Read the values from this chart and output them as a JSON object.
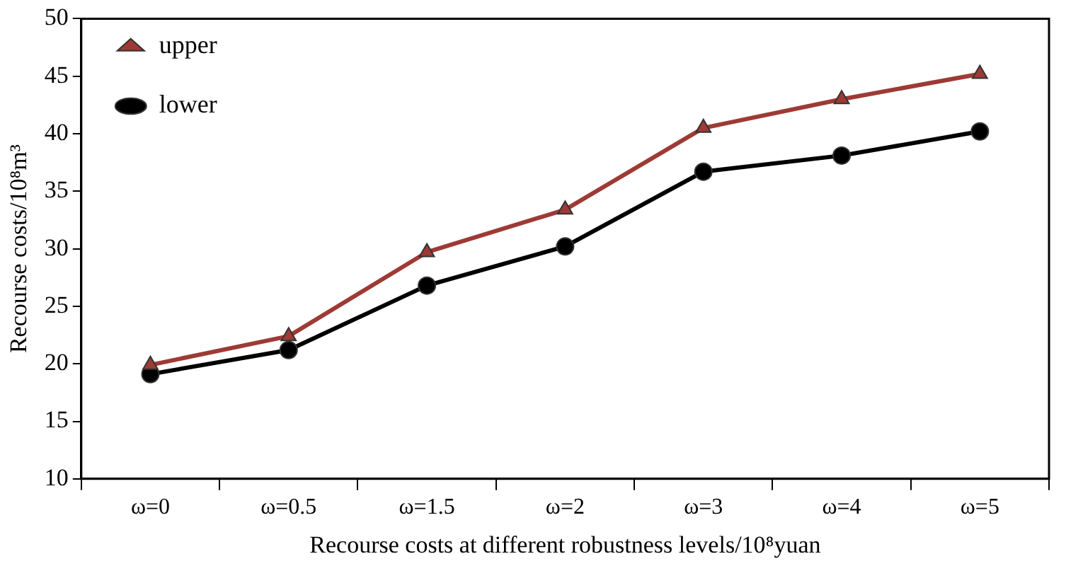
{
  "chart_data": {
    "type": "line",
    "xlabel": "Recourse costs at different robustness levels/10⁸yuan",
    "ylabel": "Recourse costs/10⁸m³",
    "categories": [
      "ω=0",
      "ω=0.5",
      "ω=1.5",
      "ω=2",
      "ω=3",
      "ω=4",
      "ω=5"
    ],
    "series": [
      {
        "name": "upper",
        "color": "#9e3a35",
        "marker": "triangle",
        "values": [
          19.9,
          22.4,
          29.7,
          33.4,
          40.5,
          43.0,
          45.2
        ]
      },
      {
        "name": "lower",
        "color": "#000000",
        "marker": "circle",
        "values": [
          19.1,
          21.2,
          26.8,
          30.2,
          36.7,
          38.1,
          40.2
        ]
      }
    ],
    "ylim": [
      10,
      50
    ],
    "yticks": [
      10,
      15,
      20,
      25,
      30,
      35,
      40,
      45,
      50
    ],
    "grid": false,
    "legend": "top left",
    "line_style": "solid"
  }
}
